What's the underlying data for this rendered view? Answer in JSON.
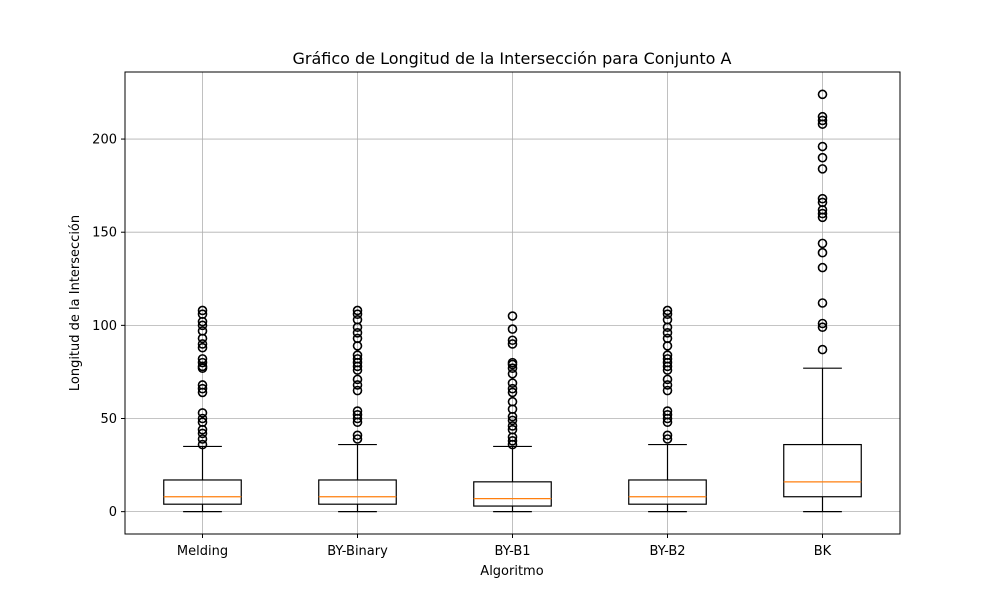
{
  "chart_data": {
    "type": "box",
    "title": "Gráfico de Longitud de la Intersección para Conjunto A",
    "xlabel": "Algoritmo",
    "ylabel": "Longitud de la Intersección",
    "categories": [
      "Melding",
      "BY-Binary",
      "BY-B1",
      "BY-B2",
      "BK"
    ],
    "ylim": [
      -12,
      236
    ],
    "yticks": [
      0,
      50,
      100,
      150,
      200
    ],
    "grid": true,
    "colors": {
      "box": "#000000",
      "median": "#ff7f0e",
      "grid": "#b0b0b0",
      "flier": "#000000"
    },
    "boxes": [
      {
        "name": "Melding",
        "whisker_low": 0,
        "q1": 4,
        "median": 8,
        "q3": 17,
        "whisker_high": 35,
        "outliers": [
          36,
          39,
          42,
          44,
          48,
          50,
          53,
          64,
          66,
          68,
          77,
          78,
          80,
          82,
          88,
          90,
          93,
          97,
          100,
          102,
          106,
          108
        ]
      },
      {
        "name": "BY-Binary",
        "whisker_low": 0,
        "q1": 4,
        "median": 8,
        "q3": 17,
        "whisker_high": 36,
        "outliers": [
          39,
          41,
          48,
          50,
          52,
          54,
          65,
          68,
          71,
          76,
          78,
          80,
          82,
          84,
          89,
          93,
          96,
          99,
          103,
          106,
          108
        ]
      },
      {
        "name": "BY-B1",
        "whisker_low": 0,
        "q1": 3,
        "median": 7,
        "q3": 16,
        "whisker_high": 35,
        "outliers": [
          36,
          38,
          40,
          44,
          46,
          49,
          51,
          55,
          59,
          64,
          66,
          69,
          74,
          77,
          79,
          80,
          90,
          92,
          98,
          105
        ]
      },
      {
        "name": "BY-B2",
        "whisker_low": 0,
        "q1": 4,
        "median": 8,
        "q3": 17,
        "whisker_high": 36,
        "outliers": [
          39,
          41,
          48,
          50,
          52,
          54,
          65,
          68,
          71,
          76,
          78,
          80,
          82,
          84,
          89,
          93,
          96,
          99,
          103,
          106,
          108
        ]
      },
      {
        "name": "BK",
        "whisker_low": 0,
        "q1": 8,
        "median": 16,
        "q3": 36,
        "whisker_high": 77,
        "outliers": [
          87,
          99,
          101,
          112,
          131,
          139,
          144,
          158,
          160,
          162,
          166,
          168,
          184,
          190,
          196,
          208,
          210,
          212,
          224
        ]
      }
    ]
  }
}
